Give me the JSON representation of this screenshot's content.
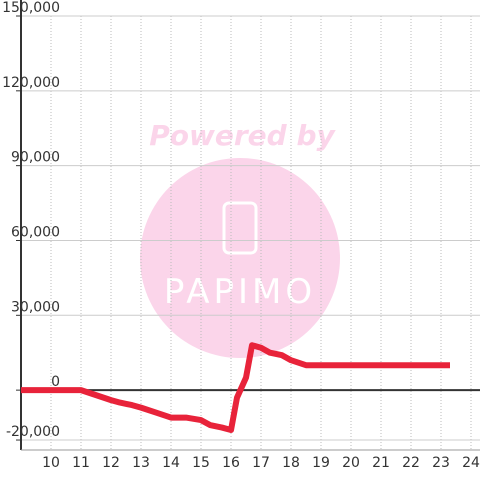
{
  "chart_data": {
    "type": "line",
    "watermark": {
      "title": "Powered by",
      "logo": "PAPIMO"
    },
    "x": [
      9,
      11,
      11.5,
      12,
      12.3,
      12.7,
      13,
      13.5,
      14,
      14.5,
      15,
      15.3,
      15.7,
      16,
      16.2,
      16.5,
      16.7,
      17,
      17.3,
      17.7,
      18,
      18.5,
      23.3
    ],
    "series": [
      {
        "color": "#e8233a",
        "values": [
          0,
          0,
          -2000,
          -4000,
          -5000,
          -6000,
          -7000,
          -9000,
          -11000,
          -11000,
          -12000,
          -14000,
          -15000,
          -16000,
          -3000,
          5000,
          18000,
          17000,
          15000,
          14000,
          12000,
          10000,
          10000
        ]
      }
    ],
    "xlim": [
      9,
      24.3
    ],
    "xticks": [
      10,
      11,
      12,
      13,
      14,
      15,
      16,
      17,
      18,
      19,
      20,
      21,
      22,
      23,
      24
    ],
    "ylim": [
      -24000,
      150000
    ],
    "yticks": [
      {
        "value": -20000,
        "label": "-20,000"
      },
      0,
      {
        "value": 30000,
        "label": "30,000"
      },
      {
        "value": 60000,
        "label": "60,000"
      },
      {
        "value": 90000,
        "label": "90,000"
      },
      {
        "value": 120000,
        "label": "120,000"
      },
      {
        "value": 150000,
        "label": "150,000"
      }
    ],
    "grid": true
  }
}
